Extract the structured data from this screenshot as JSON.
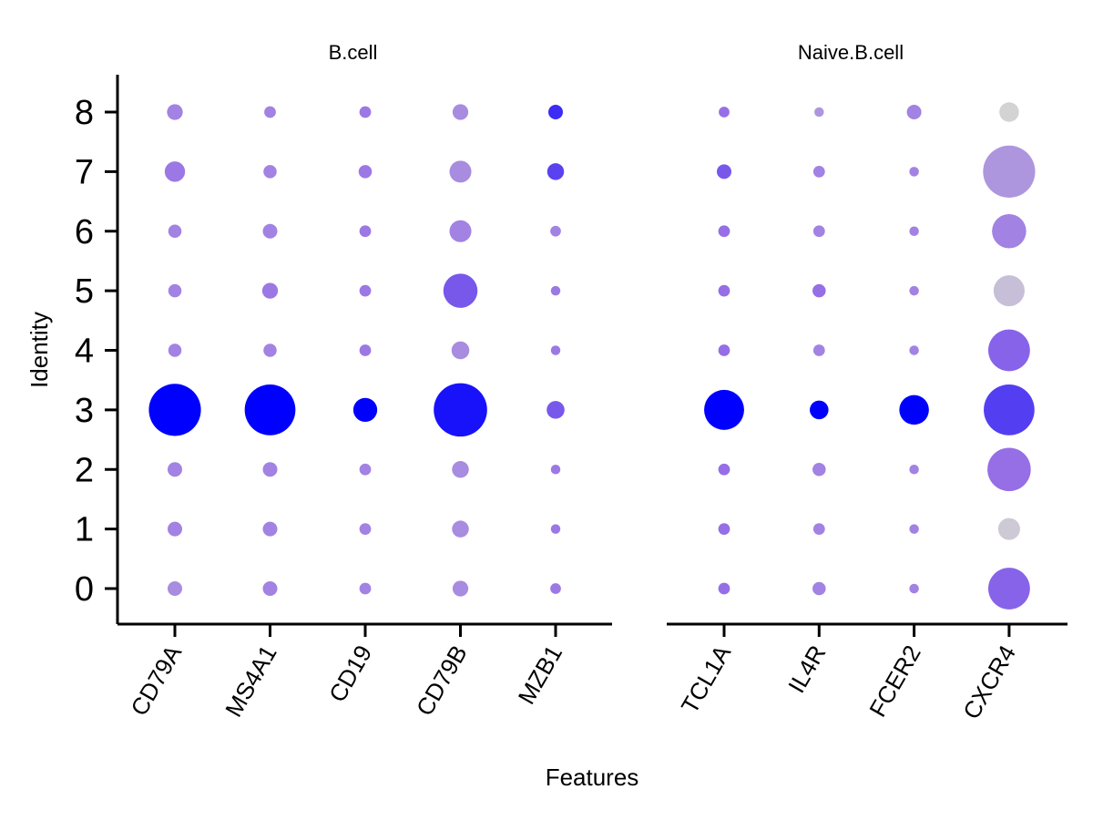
{
  "chart_data": {
    "type": "scatter",
    "subtype": "dot-plot",
    "xlabel": "Features",
    "ylabel": "Identity",
    "identities": [
      "0",
      "1",
      "2",
      "3",
      "4",
      "5",
      "6",
      "7",
      "8"
    ],
    "color_scale": {
      "low": "#d3d3d3",
      "high": "#0000ff"
    },
    "grid": false,
    "legend": "none",
    "panels": [
      {
        "title": "B.cell",
        "features": [
          "CD79A",
          "MS4A1",
          "CD19",
          "CD79B",
          "MZB1"
        ],
        "size": [
          [
            0.04,
            0.04,
            0.02,
            0.05,
            0.015
          ],
          [
            0.04,
            0.04,
            0.02,
            0.06,
            0.01
          ],
          [
            0.04,
            0.04,
            0.02,
            0.06,
            0.01
          ],
          [
            0.9,
            0.85,
            0.15,
            0.95,
            0.07
          ],
          [
            0.03,
            0.03,
            0.02,
            0.07,
            0.01
          ],
          [
            0.03,
            0.05,
            0.02,
            0.35,
            0.01
          ],
          [
            0.03,
            0.04,
            0.02,
            0.12,
            0.015
          ],
          [
            0.1,
            0.03,
            0.03,
            0.12,
            0.06
          ],
          [
            0.05,
            0.02,
            0.02,
            0.05,
            0.04
          ]
        ],
        "expr": [
          [
            0.35,
            0.4,
            0.4,
            0.35,
            0.45
          ],
          [
            0.4,
            0.4,
            0.4,
            0.35,
            0.45
          ],
          [
            0.4,
            0.4,
            0.4,
            0.35,
            0.45
          ],
          [
            1.0,
            1.0,
            1.0,
            0.92,
            0.6
          ],
          [
            0.4,
            0.4,
            0.45,
            0.35,
            0.45
          ],
          [
            0.4,
            0.45,
            0.45,
            0.6,
            0.45
          ],
          [
            0.4,
            0.4,
            0.45,
            0.4,
            0.4
          ],
          [
            0.45,
            0.4,
            0.45,
            0.35,
            0.7
          ],
          [
            0.4,
            0.4,
            0.45,
            0.35,
            0.8
          ]
        ]
      },
      {
        "title": "Naive.B.cell",
        "features": [
          "TCL1A",
          "IL4R",
          "FCER2",
          "CXCR4"
        ],
        "size": [
          [
            0.02,
            0.03,
            0.01,
            0.55
          ],
          [
            0.02,
            0.02,
            0.01,
            0.12
          ],
          [
            0.02,
            0.03,
            0.01,
            0.6
          ],
          [
            0.5,
            0.08,
            0.25,
            0.85
          ],
          [
            0.02,
            0.02,
            0.01,
            0.55
          ],
          [
            0.02,
            0.03,
            0.01,
            0.28
          ],
          [
            0.02,
            0.02,
            0.01,
            0.35
          ],
          [
            0.04,
            0.02,
            0.01,
            0.9
          ],
          [
            0.015,
            0.01,
            0.04,
            0.09
          ]
        ],
        "expr": [
          [
            0.5,
            0.4,
            0.4,
            0.55
          ],
          [
            0.5,
            0.4,
            0.4,
            0.05
          ],
          [
            0.5,
            0.4,
            0.4,
            0.5
          ],
          [
            1.0,
            1.0,
            1.0,
            0.72
          ],
          [
            0.5,
            0.4,
            0.4,
            0.55
          ],
          [
            0.5,
            0.5,
            0.4,
            0.1
          ],
          [
            0.5,
            0.4,
            0.4,
            0.4
          ],
          [
            0.6,
            0.4,
            0.4,
            0.3
          ],
          [
            0.5,
            0.3,
            0.4,
            0.0
          ]
        ]
      }
    ]
  }
}
